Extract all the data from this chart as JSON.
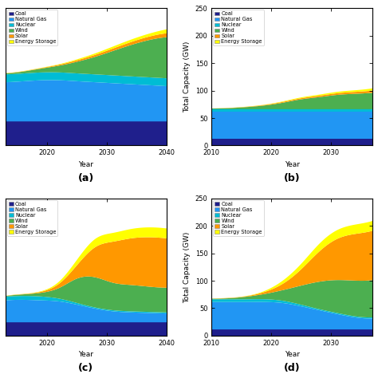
{
  "colors": [
    "#1f1f8c",
    "#2196f3",
    "#00bcd4",
    "#4caf50",
    "#ff9800",
    "#ffff00"
  ],
  "labels": [
    "Coal",
    "Natural Gas",
    "Nuclear",
    "Wind",
    "Solar",
    "Energy Storage"
  ],
  "subplots": {
    "a": {
      "years": [
        2013,
        2016,
        2019,
        2022,
        2025,
        2028,
        2031,
        2034,
        2037,
        2040
      ],
      "data": {
        "Coal": [
          25,
          25,
          25,
          25,
          25,
          25,
          25,
          25,
          25,
          25
        ],
        "Natural Gas": [
          40,
          41,
          42,
          42,
          41,
          40,
          39,
          38,
          37,
          36
        ],
        "Nuclear": [
          8,
          8,
          8,
          8,
          8,
          8,
          8,
          8,
          8,
          8
        ],
        "Wind": [
          1,
          2,
          4,
          7,
          12,
          18,
          25,
          32,
          38,
          42
        ],
        "Solar": [
          0.2,
          0.3,
          0.5,
          1,
          1.5,
          2,
          2.5,
          3,
          3.5,
          4
        ],
        "Energy Storage": [
          0.1,
          0.2,
          0.3,
          0.5,
          1,
          1.5,
          2,
          2.5,
          3,
          4
        ]
      },
      "ylabel": "",
      "xlabel": "Year",
      "label": "(a)",
      "xlim": [
        2013,
        2040
      ],
      "ylim": [
        0,
        140
      ],
      "yticks": [],
      "xticks": [
        2020,
        2030,
        2040
      ]
    },
    "b": {
      "years": [
        2010,
        2013,
        2016,
        2019,
        2022,
        2025,
        2028,
        2031,
        2034,
        2037
      ],
      "data": {
        "Coal": [
          12,
          12,
          12,
          12,
          12,
          12,
          12,
          12,
          12,
          12
        ],
        "Natural Gas": [
          50,
          50,
          50,
          50,
          50,
          50,
          50,
          50,
          50,
          50
        ],
        "Nuclear": [
          5,
          5,
          5,
          5,
          5,
          5,
          5,
          5,
          5,
          5
        ],
        "Wind": [
          1,
          2,
          4,
          7,
          12,
          18,
          22,
          26,
          28,
          30
        ],
        "Solar": [
          0.2,
          0.3,
          0.5,
          1,
          1.5,
          2,
          2.5,
          3,
          3.5,
          4
        ],
        "Energy Storage": [
          0.1,
          0.2,
          0.3,
          0.5,
          1,
          1.5,
          2,
          2.5,
          3,
          4
        ]
      },
      "ylabel": "Total Capacity (GW)",
      "xlabel": "Year",
      "label": "(b)",
      "xlim": [
        2010,
        2037
      ],
      "ylim": [
        0,
        250
      ],
      "yticks": [
        0,
        50,
        100,
        150,
        200,
        250
      ],
      "xticks": [
        2010,
        2020,
        2030
      ]
    },
    "c": {
      "years": [
        2013,
        2016,
        2019,
        2022,
        2025,
        2028,
        2031,
        2034,
        2037,
        2040
      ],
      "data": {
        "Coal": [
          25,
          25,
          25,
          25,
          25,
          25,
          25,
          25,
          25,
          25
        ],
        "Natural Gas": [
          40,
          41,
          40,
          38,
          32,
          25,
          20,
          18,
          17,
          16
        ],
        "Nuclear": [
          7,
          7,
          7,
          5,
          3,
          2,
          2,
          2,
          2,
          2
        ],
        "Wind": [
          1,
          3,
          7,
          20,
          45,
          55,
          50,
          48,
          46,
          45
        ],
        "Solar": [
          0.2,
          0.5,
          2,
          8,
          25,
          55,
          75,
          85,
          90,
          90
        ],
        "Energy Storage": [
          0.1,
          0.3,
          1,
          4,
          10,
          15,
          16,
          17,
          18,
          18
        ]
      },
      "ylabel": "",
      "xlabel": "Year",
      "label": "(c)",
      "xlim": [
        2013,
        2040
      ],
      "ylim": [
        0,
        250
      ],
      "yticks": [],
      "xticks": [
        2020,
        2030,
        2040
      ]
    },
    "d": {
      "years": [
        2010,
        2013,
        2016,
        2019,
        2022,
        2025,
        2028,
        2031,
        2034,
        2037
      ],
      "data": {
        "Coal": [
          12,
          12,
          12,
          12,
          12,
          12,
          12,
          12,
          12,
          12
        ],
        "Natural Gas": [
          50,
          50,
          50,
          50,
          48,
          42,
          35,
          28,
          22,
          20
        ],
        "Nuclear": [
          5,
          5,
          5,
          5,
          4,
          3,
          2,
          2,
          2,
          2
        ],
        "Wind": [
          1,
          2,
          5,
          10,
          20,
          35,
          50,
          60,
          65,
          68
        ],
        "Solar": [
          0.2,
          0.5,
          1,
          4,
          12,
          30,
          55,
          75,
          85,
          90
        ],
        "Energy Storage": [
          0.1,
          0.2,
          0.5,
          2,
          6,
          10,
          14,
          16,
          17,
          18
        ]
      },
      "ylabel": "Total Capacity (GW)",
      "xlabel": "Year",
      "label": "(d)",
      "xlim": [
        2010,
        2037
      ],
      "ylim": [
        0,
        250
      ],
      "yticks": [
        0,
        50,
        100,
        150,
        200,
        250
      ],
      "xticks": [
        2010,
        2020,
        2030
      ]
    }
  }
}
